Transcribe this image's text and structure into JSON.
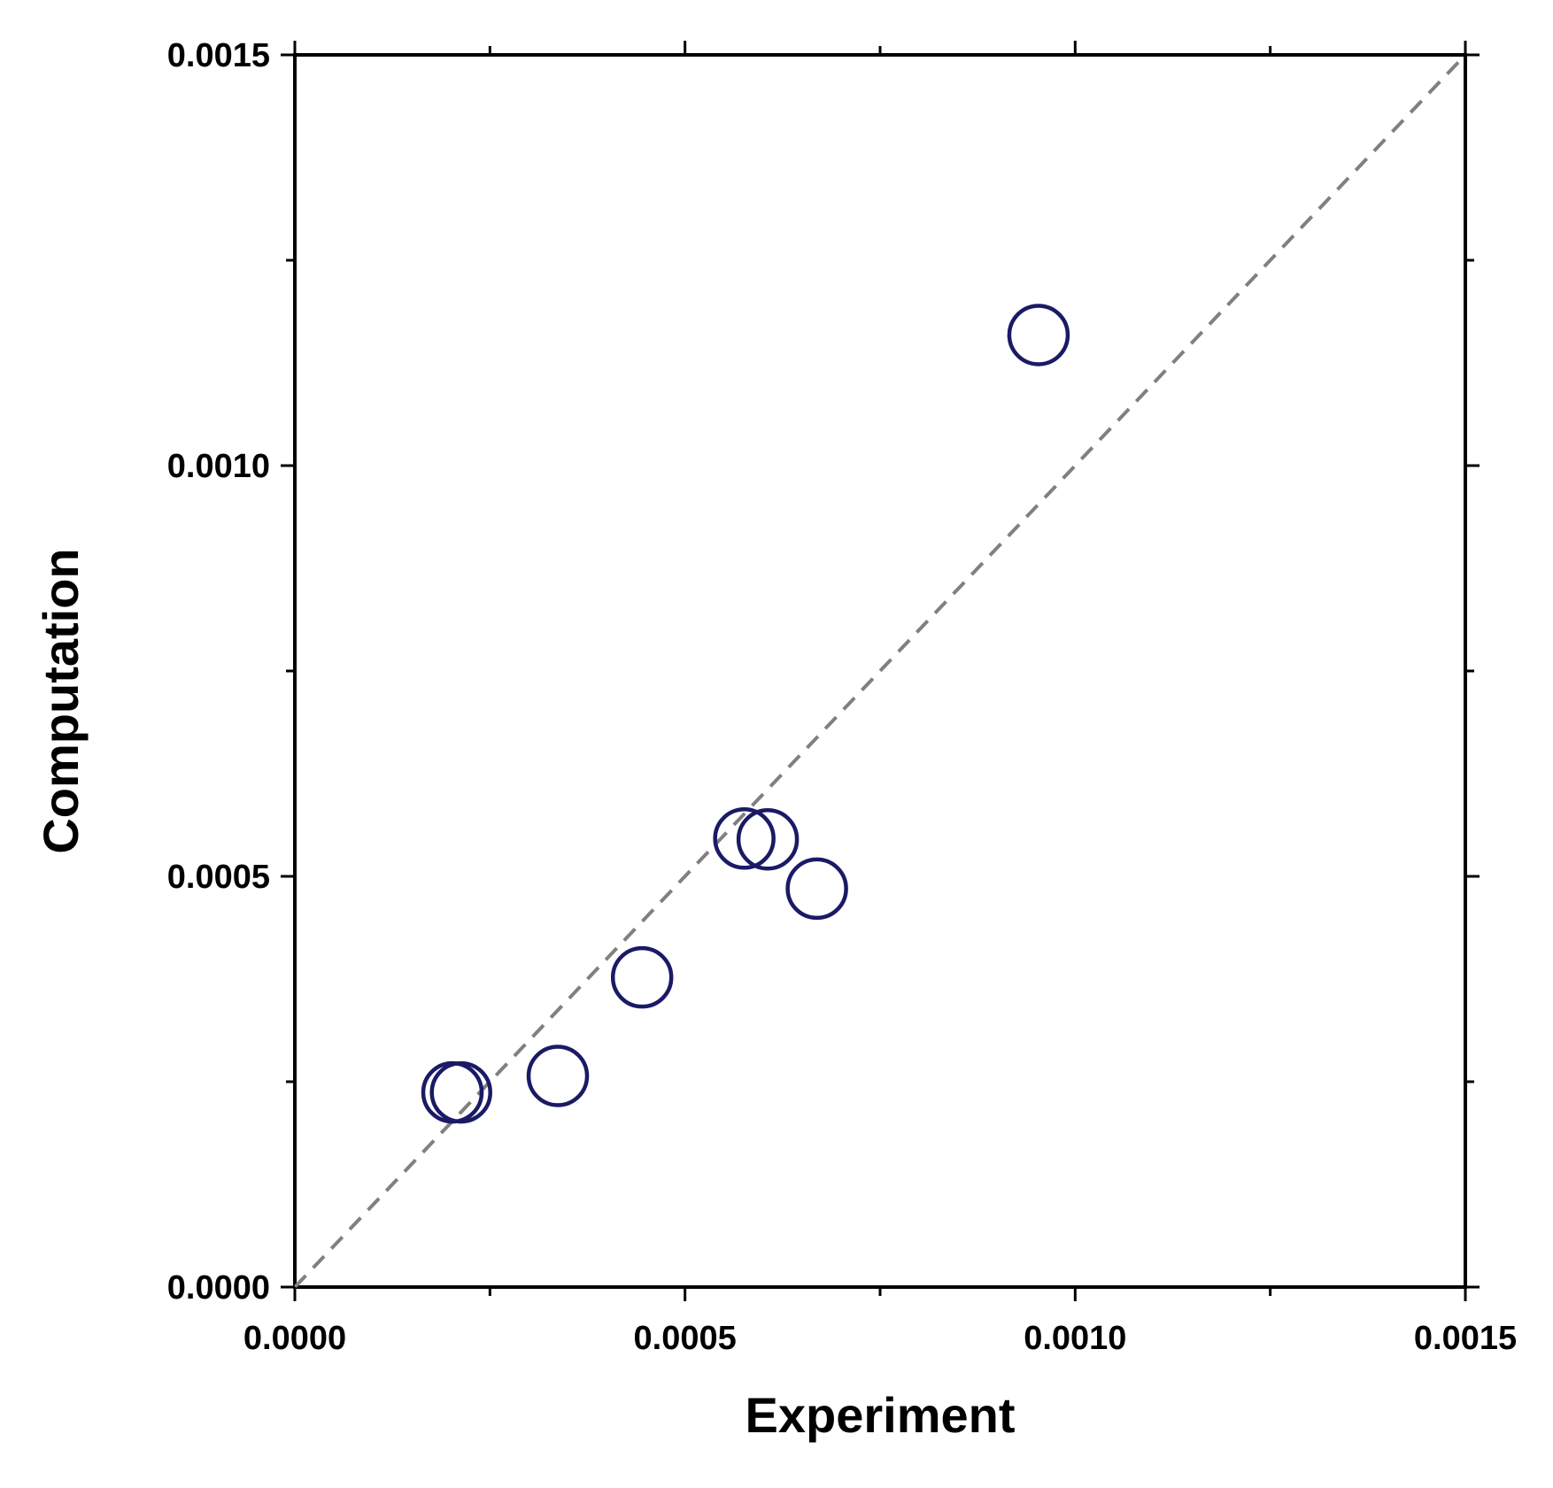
{
  "chart_data": {
    "type": "scatter",
    "title": "",
    "xlabel": "Experiment",
    "ylabel": "Computation",
    "xlim": [
      0,
      0.0015
    ],
    "ylim": [
      0,
      0.0015
    ],
    "x_ticks": [
      "0.0000",
      "0.0005",
      "0.0010",
      "0.0015"
    ],
    "y_ticks": [
      "0.0000",
      "0.0005",
      "0.0010",
      "0.0015"
    ],
    "x_tick_values": [
      0,
      0.0005,
      0.001,
      0.0015
    ],
    "y_tick_values": [
      0,
      0.0005,
      0.001,
      0.0015
    ],
    "minor_tick_step": 0.00025,
    "grid": false,
    "reference_line": {
      "style": "dashed",
      "from": [
        0,
        0
      ],
      "to": [
        0.0015,
        0.0015
      ],
      "color": "#808080"
    },
    "marker": {
      "shape": "open-circle",
      "color": "#1a1a66"
    },
    "points": [
      {
        "x": 0.000202,
        "y": 0.000237
      },
      {
        "x": 0.000213,
        "y": 0.000237
      },
      {
        "x": 0.000337,
        "y": 0.000257
      },
      {
        "x": 0.000445,
        "y": 0.000377
      },
      {
        "x": 0.000576,
        "y": 0.000546
      },
      {
        "x": 0.000606,
        "y": 0.000545
      },
      {
        "x": 0.000669,
        "y": 0.000485
      },
      {
        "x": 0.000953,
        "y": 0.001159
      }
    ]
  }
}
